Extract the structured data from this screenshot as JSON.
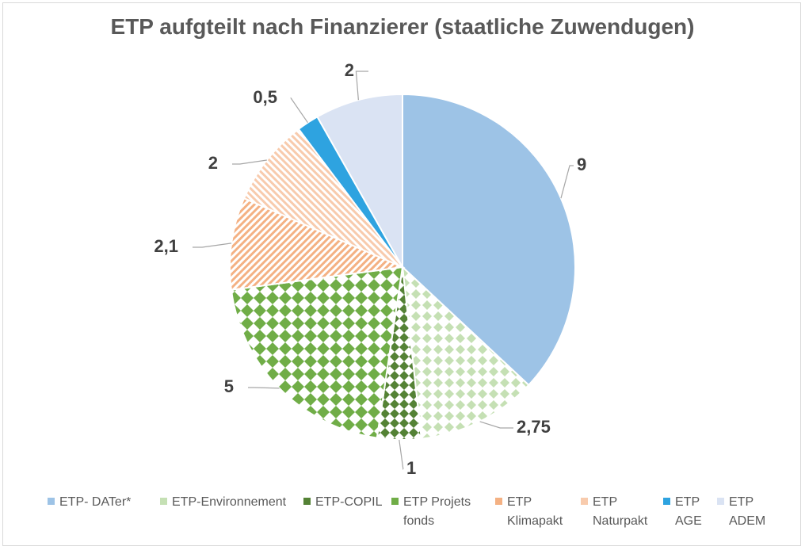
{
  "chart_data": {
    "type": "pie",
    "title": "ETP aufgteilt nach Finanzierer (staatliche Zuwendugen)",
    "slices": [
      {
        "label": "ETP- DATer*",
        "value": 9,
        "value_label": "9",
        "color": "#9dc3e6",
        "pattern": "solid"
      },
      {
        "label": "ETP-Environnement",
        "value": 2.75,
        "value_label": "2,75",
        "color": "#c5e0b4",
        "pattern": "diamond-light"
      },
      {
        "label": "ETP-COPIL",
        "value": 1,
        "value_label": "1",
        "color": "#548235",
        "pattern": "diamond-dark"
      },
      {
        "label": "ETP Projets fonds",
        "value": 5,
        "value_label": "5",
        "color": "#70ad47",
        "pattern": "diamond-medium"
      },
      {
        "label": "ETP Klimapakt",
        "value": 2.1,
        "value_label": "2,1",
        "color": "#f4b183",
        "pattern": "diagonal-orange"
      },
      {
        "label": "ETP Naturpakt",
        "value": 2,
        "value_label": "2",
        "color": "#f8cbad",
        "pattern": "diagonal-pink"
      },
      {
        "label": "ETP AGE",
        "value": 0.5,
        "value_label": "0,5",
        "color": "#2ea3e0",
        "pattern": "solid"
      },
      {
        "label": "ETP ADEM",
        "value": 2,
        "value_label": "2",
        "color": "#dae3f3",
        "pattern": "solid"
      }
    ],
    "legend_position": "bottom"
  }
}
